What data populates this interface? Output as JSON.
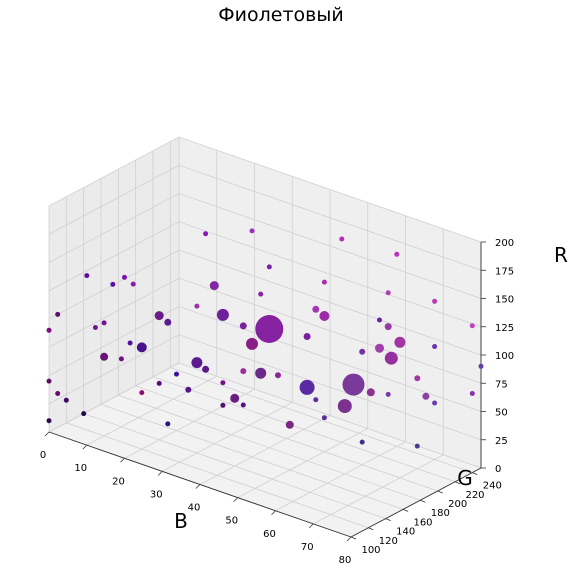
{
  "chart_data": {
    "type": "scatter3d",
    "title": "Фиолетовый",
    "xlabel": "B",
    "ylabel": "G",
    "zlabel": "R",
    "xlim": [
      0,
      80
    ],
    "ylim": [
      100,
      250
    ],
    "zlim": [
      0,
      200
    ],
    "xticks": [
      0,
      10,
      20,
      30,
      40,
      50,
      60,
      70,
      80
    ],
    "yticks": [
      100,
      120,
      140,
      160,
      180,
      200,
      220,
      240
    ],
    "zticks": [
      0,
      25,
      50,
      75,
      100,
      125,
      150,
      175,
      200
    ],
    "grid": true,
    "marker_color": "#7f1fa0",
    "points": [
      {
        "x": 40,
        "y": 180,
        "z": 105,
        "size": 26,
        "color": "#8622a0"
      },
      {
        "x": 60,
        "y": 190,
        "z": 75,
        "size": 20,
        "color": "#7a3a9c"
      },
      {
        "x": 50,
        "y": 180,
        "z": 65,
        "size": 13,
        "color": "#5b2aa0"
      },
      {
        "x": 60,
        "y": 180,
        "z": 60,
        "size": 12,
        "color": "#7a3190"
      },
      {
        "x": 40,
        "y": 160,
        "z": 100,
        "size": 10,
        "color": "#8b1e86"
      },
      {
        "x": 30,
        "y": 170,
        "z": 110,
        "size": 10,
        "color": "#6d2299"
      },
      {
        "x": 70,
        "y": 190,
        "z": 110,
        "size": 11,
        "color": "#9430a0"
      },
      {
        "x": 70,
        "y": 200,
        "z": 120,
        "size": 9,
        "color": "#a136a3"
      },
      {
        "x": 30,
        "y": 140,
        "z": 80,
        "size": 9,
        "color": "#5b1a8e"
      },
      {
        "x": 40,
        "y": 170,
        "z": 70,
        "size": 9,
        "color": "#6b2a8a"
      },
      {
        "x": 20,
        "y": 120,
        "z": 90,
        "size": 8,
        "color": "#4a128a"
      },
      {
        "x": 50,
        "y": 200,
        "z": 120,
        "size": 8,
        "color": "#9a2aa5"
      },
      {
        "x": 40,
        "y": 140,
        "z": 60,
        "size": 7,
        "color": "#6a1e84"
      },
      {
        "x": 20,
        "y": 140,
        "z": 110,
        "size": 7,
        "color": "#6b1d8a"
      },
      {
        "x": 30,
        "y": 160,
        "z": 140,
        "size": 7,
        "color": "#8226a4"
      },
      {
        "x": 60,
        "y": 220,
        "z": 95,
        "size": 7,
        "color": "#a040a8"
      },
      {
        "x": 50,
        "y": 160,
        "z": 40,
        "size": 6,
        "color": "#7a2880"
      },
      {
        "x": 60,
        "y": 210,
        "z": 60,
        "size": 6,
        "color": "#8f3390"
      },
      {
        "x": 10,
        "y": 120,
        "z": 70,
        "size": 6,
        "color": "#6a1078"
      },
      {
        "x": 20,
        "y": 150,
        "z": 100,
        "size": 5,
        "color": "#5a1a90"
      },
      {
        "x": 30,
        "y": 150,
        "z": 70,
        "size": 5,
        "color": "#5a1a8a"
      },
      {
        "x": 50,
        "y": 180,
        "z": 110,
        "size": 5,
        "color": "#7a20a0"
      },
      {
        "x": 60,
        "y": 230,
        "z": 110,
        "size": 5,
        "color": "#9a3aa8"
      },
      {
        "x": 70,
        "y": 230,
        "z": 60,
        "size": 5,
        "color": "#8a40a0"
      },
      {
        "x": 50,
        "y": 190,
        "z": 130,
        "size": 5,
        "color": "#a038b0"
      },
      {
        "x": 40,
        "y": 150,
        "z": 120,
        "size": 5,
        "color": "#7b22a0"
      },
      {
        "x": 40,
        "y": 190,
        "z": 60,
        "size": 4,
        "color": "#8a2898"
      },
      {
        "x": 70,
        "y": 220,
        "z": 80,
        "size": 4,
        "color": "#a03aa0"
      },
      {
        "x": 30,
        "y": 130,
        "z": 60,
        "size": 4,
        "color": "#5a1288"
      },
      {
        "x": 40,
        "y": 150,
        "z": 80,
        "size": 4,
        "color": "#a02aa0"
      },
      {
        "x": 60,
        "y": 200,
        "z": 100,
        "size": 4,
        "color": "#7a30a0"
      },
      {
        "x": 10,
        "y": 110,
        "z": 100,
        "size": 3,
        "color": "#6b1a8e"
      },
      {
        "x": 0,
        "y": 110,
        "z": 100,
        "size": 3,
        "color": "#5a1070"
      },
      {
        "x": 20,
        "y": 120,
        "z": 50,
        "size": 3,
        "color": "#8a1070"
      },
      {
        "x": 30,
        "y": 150,
        "z": 190,
        "size": 3,
        "color": "#8a18b0"
      },
      {
        "x": 40,
        "y": 160,
        "z": 200,
        "size": 3,
        "color": "#a030c0"
      },
      {
        "x": 20,
        "y": 110,
        "z": 150,
        "size": 3,
        "color": "#8a1ab0"
      },
      {
        "x": 10,
        "y": 130,
        "z": 130,
        "size": 3,
        "color": "#6010a0"
      },
      {
        "x": 40,
        "y": 170,
        "z": 140,
        "size": 3,
        "color": "#8a20a8"
      },
      {
        "x": 50,
        "y": 200,
        "z": 150,
        "size": 3,
        "color": "#b02ab0"
      },
      {
        "x": 60,
        "y": 230,
        "z": 140,
        "size": 3,
        "color": "#b040b0"
      },
      {
        "x": 70,
        "y": 240,
        "z": 140,
        "size": 3,
        "color": "#b838b8"
      },
      {
        "x": 80,
        "y": 240,
        "z": 130,
        "size": 3,
        "color": "#c040c0"
      },
      {
        "x": 60,
        "y": 240,
        "z": 170,
        "size": 3,
        "color": "#c030c0"
      },
      {
        "x": 50,
        "y": 220,
        "z": 180,
        "size": 3,
        "color": "#b030b0"
      },
      {
        "x": 20,
        "y": 100,
        "z": 160,
        "size": 3,
        "color": "#8010b0"
      },
      {
        "x": 10,
        "y": 100,
        "z": 150,
        "size": 3,
        "color": "#6010a0"
      },
      {
        "x": 0,
        "y": 100,
        "z": 90,
        "size": 3,
        "color": "#800a80"
      },
      {
        "x": 0,
        "y": 100,
        "z": 45,
        "size": 3,
        "color": "#600a60"
      },
      {
        "x": 0,
        "y": 120,
        "z": 20,
        "size": 3,
        "color": "#400a60"
      },
      {
        "x": 10,
        "y": 140,
        "z": 60,
        "size": 3,
        "color": "#701080"
      },
      {
        "x": 10,
        "y": 150,
        "z": 70,
        "size": 3,
        "color": "#5010a0"
      },
      {
        "x": 20,
        "y": 160,
        "z": 50,
        "size": 3,
        "color": "#3a10a0"
      },
      {
        "x": 30,
        "y": 170,
        "z": 50,
        "size": 3,
        "color": "#7a1090"
      },
      {
        "x": 50,
        "y": 190,
        "z": 50,
        "size": 3,
        "color": "#5a30a0"
      },
      {
        "x": 60,
        "y": 200,
        "z": 20,
        "size": 3,
        "color": "#403090"
      },
      {
        "x": 70,
        "y": 220,
        "z": 20,
        "size": 3,
        "color": "#4a3a90"
      },
      {
        "x": 30,
        "y": 170,
        "z": 30,
        "size": 3,
        "color": "#501070"
      },
      {
        "x": 20,
        "y": 150,
        "z": 10,
        "size": 3,
        "color": "#301080"
      },
      {
        "x": 80,
        "y": 240,
        "z": 70,
        "size": 3,
        "color": "#8a30a8"
      },
      {
        "x": 70,
        "y": 240,
        "z": 100,
        "size": 3,
        "color": "#7030b0"
      },
      {
        "x": 60,
        "y": 220,
        "z": 120,
        "size": 3,
        "color": "#6a20a8"
      },
      {
        "x": 40,
        "y": 180,
        "z": 160,
        "size": 3,
        "color": "#7a20b0"
      },
      {
        "x": 30,
        "y": 140,
        "z": 130,
        "size": 3,
        "color": "#a030a8"
      },
      {
        "x": 10,
        "y": 120,
        "z": 100,
        "size": 3,
        "color": "#7a1098"
      },
      {
        "x": 0,
        "y": 110,
        "z": 30,
        "size": 3,
        "color": "#6a0a70"
      },
      {
        "x": 0,
        "y": 140,
        "z": 0,
        "size": 3,
        "color": "#200a50"
      },
      {
        "x": 0,
        "y": 100,
        "z": 10,
        "size": 3,
        "color": "#300a50"
      },
      {
        "x": 20,
        "y": 140,
        "z": 50,
        "size": 3,
        "color": "#501080"
      },
      {
        "x": 40,
        "y": 150,
        "z": 50,
        "size": 3,
        "color": "#5a1088"
      },
      {
        "x": 50,
        "y": 200,
        "z": 30,
        "size": 3,
        "color": "#5a2a98"
      },
      {
        "x": 60,
        "y": 230,
        "z": 50,
        "size": 3,
        "color": "#7a3aa8"
      },
      {
        "x": 70,
        "y": 240,
        "z": 50,
        "size": 3,
        "color": "#6a3ab0"
      },
      {
        "x": 80,
        "y": 250,
        "z": 90,
        "size": 3,
        "color": "#6040b0"
      }
    ]
  }
}
